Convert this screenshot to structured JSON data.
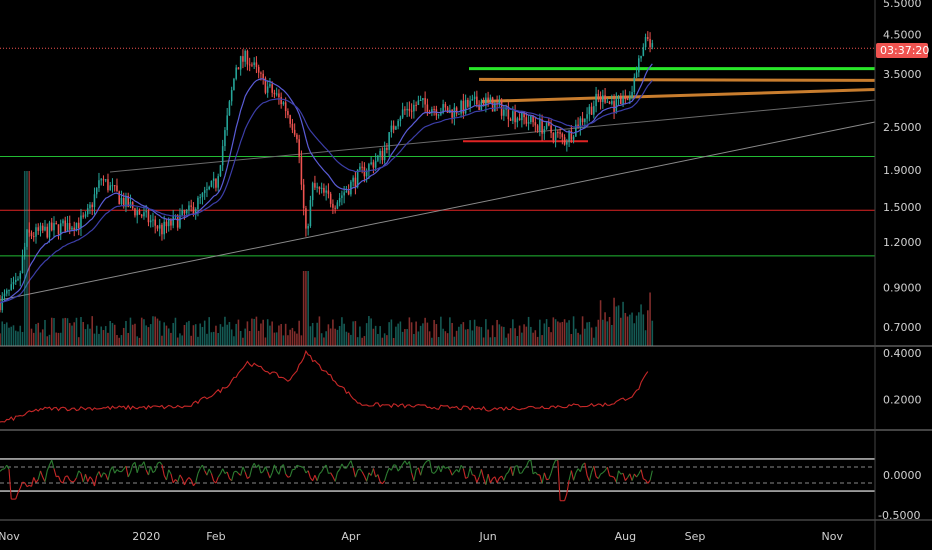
{
  "chart_data": [
    {
      "type": "candlestick",
      "panel": "price",
      "y_scale": "log",
      "ylim": [
        0.62,
        5.6
      ],
      "y_ticks": [
        "5.5000",
        "4.5000",
        "3.5000",
        "2.5000",
        "1.9000",
        "1.5000",
        "1.2000",
        "0.9000",
        "0.7000"
      ],
      "current_price_label": "03:37:20",
      "current_price": 4.12,
      "ohlc_series": [
        {
          "date": "2019-10-28",
          "close": 0.82
        },
        {
          "date": "2019-11-05",
          "close": 0.92
        },
        {
          "date": "2019-11-09",
          "close": 1.25
        },
        {
          "date": "2019-11-20",
          "close": 1.3
        },
        {
          "date": "2019-12-05",
          "close": 1.38
        },
        {
          "date": "2019-12-12",
          "close": 1.8
        },
        {
          "date": "2019-12-22",
          "close": 1.55
        },
        {
          "date": "2020-01-08",
          "close": 1.3
        },
        {
          "date": "2020-01-20",
          "close": 1.45
        },
        {
          "date": "2020-02-01",
          "close": 1.75
        },
        {
          "date": "2020-02-05",
          "close": 2.4
        },
        {
          "date": "2020-02-10",
          "close": 3.7
        },
        {
          "date": "2020-02-15",
          "close": 3.9
        },
        {
          "date": "2020-02-22",
          "close": 3.3
        },
        {
          "date": "2020-03-02",
          "close": 2.9
        },
        {
          "date": "2020-03-08",
          "close": 2.4
        },
        {
          "date": "2020-03-12",
          "close": 1.25
        },
        {
          "date": "2020-03-15",
          "close": 1.7
        },
        {
          "date": "2020-03-25",
          "close": 1.55
        },
        {
          "date": "2020-04-05",
          "close": 1.85
        },
        {
          "date": "2020-04-15",
          "close": 2.1
        },
        {
          "date": "2020-04-22",
          "close": 2.7
        },
        {
          "date": "2020-05-01",
          "close": 2.9
        },
        {
          "date": "2020-05-15",
          "close": 2.75
        },
        {
          "date": "2020-05-30",
          "close": 2.95
        },
        {
          "date": "2020-06-10",
          "close": 2.75
        },
        {
          "date": "2020-06-25",
          "close": 2.5
        },
        {
          "date": "2020-07-05",
          "close": 2.3
        },
        {
          "date": "2020-07-12",
          "close": 2.6
        },
        {
          "date": "2020-07-20",
          "close": 3.0
        },
        {
          "date": "2020-07-28",
          "close": 2.85
        },
        {
          "date": "2020-08-03",
          "close": 3.05
        },
        {
          "date": "2020-08-08",
          "close": 3.9
        },
        {
          "date": "2020-08-11",
          "close": 4.4
        },
        {
          "date": "2020-08-13",
          "close": 4.1
        }
      ],
      "volume_series": {
        "last_spike_date": "2020-03-12"
      },
      "horizontal_levels": [
        {
          "value": 2.07,
          "color": "#22bb33"
        },
        {
          "value": 1.47,
          "color": "#e02424"
        },
        {
          "value": 1.1,
          "color": "#22bb33"
        },
        {
          "value": 3.62,
          "color": "#29e629"
        },
        {
          "value": 3.38,
          "color": "#c87d2e"
        },
        {
          "value": 3.05,
          "color": "#c87d2e"
        },
        {
          "value": 2.28,
          "color": "#e02424"
        }
      ],
      "colors": {
        "up": "#26a69a",
        "down": "#ef5350",
        "ma": "#5a5cd6",
        "price_line": "#ef5350"
      }
    },
    {
      "type": "line",
      "panel": "indicator-1",
      "ylim": [
        0.07,
        0.43
      ],
      "y_ticks": [
        "0.4000",
        "0.2000"
      ],
      "color": "#c62828",
      "points": [
        {
          "date": "2019-10-28",
          "value": 0.1
        },
        {
          "date": "2019-11-15",
          "value": 0.16
        },
        {
          "date": "2020-01-20",
          "value": 0.17
        },
        {
          "date": "2020-02-05",
          "value": 0.25
        },
        {
          "date": "2020-02-15",
          "value": 0.36
        },
        {
          "date": "2020-03-05",
          "value": 0.28
        },
        {
          "date": "2020-03-12",
          "value": 0.4
        },
        {
          "date": "2020-04-05",
          "value": 0.18
        },
        {
          "date": "2020-06-01",
          "value": 0.16
        },
        {
          "date": "2020-07-25",
          "value": 0.18
        },
        {
          "date": "2020-08-05",
          "value": 0.22
        },
        {
          "date": "2020-08-12",
          "value": 0.33
        }
      ]
    },
    {
      "type": "line",
      "panel": "indicator-2",
      "ylim": [
        -0.56,
        0.56
      ],
      "y_ticks": [
        "0.0000",
        "-0.5000"
      ],
      "levels": [
        0.2,
        0.1,
        -0.1,
        -0.2
      ],
      "colors": {
        "positive": "#2e7d32",
        "negative": "#c62828"
      }
    }
  ],
  "x_axis": {
    "labels": [
      {
        "text": "Nov",
        "date": "2019-11-01"
      },
      {
        "text": "2020",
        "date": "2020-01-01"
      },
      {
        "text": "Feb",
        "date": "2020-02-01"
      },
      {
        "text": "Apr",
        "date": "2020-04-01"
      },
      {
        "text": "Jun",
        "date": "2020-06-01"
      },
      {
        "text": "Aug",
        "date": "2020-08-01"
      },
      {
        "text": "Sep",
        "date": "2020-09-01"
      },
      {
        "text": "Nov",
        "date": "2020-11-01"
      }
    ]
  }
}
